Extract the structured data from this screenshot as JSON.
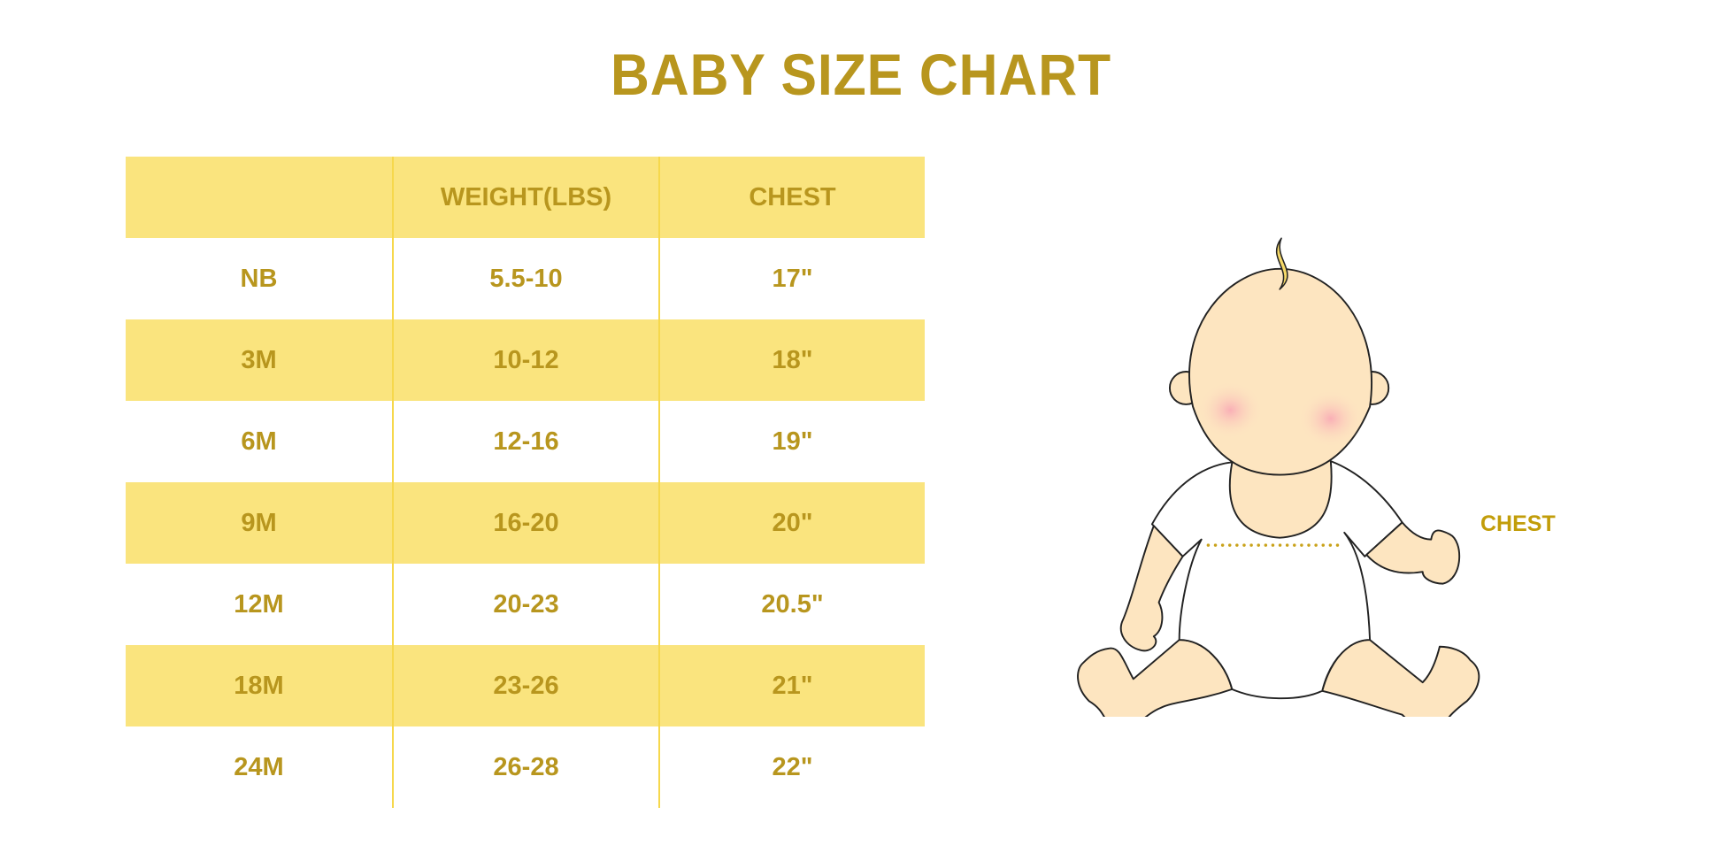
{
  "title": "BABY SIZE CHART",
  "table": {
    "headers": [
      "",
      "WEIGHT(LBS)",
      "CHEST"
    ],
    "rows": [
      [
        "NB",
        "5.5-10",
        "17\""
      ],
      [
        "3M",
        "10-12",
        "18\""
      ],
      [
        "6M",
        "12-16",
        "19\""
      ],
      [
        "9M",
        "16-20",
        "20\""
      ],
      [
        "12M",
        "20-23",
        "20.5\""
      ],
      [
        "18M",
        "23-26",
        "21\""
      ],
      [
        "24M",
        "26-28",
        "22\""
      ]
    ]
  },
  "illustration": {
    "chest_label": "CHEST"
  },
  "colors": {
    "text": "#B8961E",
    "band": "#FAE47E",
    "divider": "#F6D84C",
    "skin": "#FDE5C0"
  }
}
